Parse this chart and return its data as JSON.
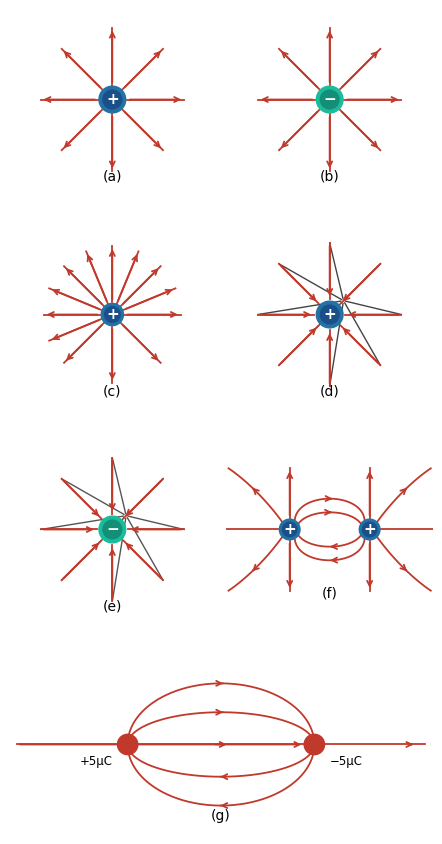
{
  "arrow_color": "#c0392b",
  "pos_charge_fill": [
    "#1a4f8a",
    "#2471a3"
  ],
  "neg_charge_fill": [
    "#148f77",
    "#1abc9c"
  ],
  "red_charge_fill": "#c0392b",
  "figsize": [
    4.42,
    8.44
  ],
  "dpi": 100,
  "panel_labels": [
    "(a)",
    "(b)",
    "(c)",
    "(d)",
    "(e)",
    "(f)",
    "(g)"
  ]
}
